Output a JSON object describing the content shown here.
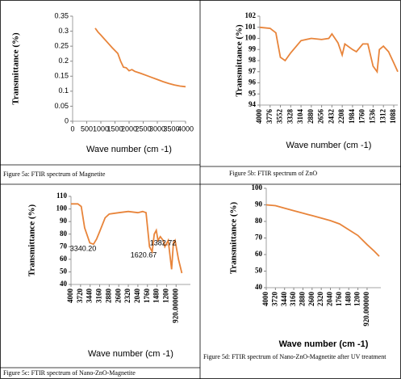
{
  "chart_data": [
    {
      "type": "line",
      "caption": "Figure 5a: FTIR spectrum of Magnetite",
      "x_label": "Wave number (cm -1)",
      "y_label": "Transmittance (%)",
      "color": "#e8843a",
      "x": [
        800,
        900,
        1000,
        1200,
        1400,
        1600,
        1700,
        1800,
        1900,
        2000,
        2100,
        2200,
        2400,
        2600,
        2800,
        3000,
        3200,
        3400,
        3600,
        3800,
        4000
      ],
      "values": [
        0.31,
        0.297,
        0.287,
        0.266,
        0.245,
        0.226,
        0.2,
        0.18,
        0.178,
        0.168,
        0.172,
        0.166,
        0.16,
        0.153,
        0.146,
        0.139,
        0.132,
        0.126,
        0.121,
        0.117,
        0.115
      ],
      "xlim": [
        0,
        4000
      ],
      "xticks": [
        0,
        500,
        1000,
        1500,
        2000,
        2500,
        3000,
        3500,
        4000
      ],
      "ylim": [
        0,
        0.35
      ],
      "yticks": [
        0,
        0.05,
        0.1,
        0.15,
        0.2,
        0.25,
        0.3,
        0.35
      ]
    },
    {
      "type": "line",
      "caption": "Figure 5b: FTIR spectrum of ZnO",
      "x_label": "Wave number (cm -1)",
      "y_label": "Transmittance (%)",
      "color": "#e8843a",
      "x": [
        4000,
        3776,
        3650,
        3552,
        3450,
        3328,
        3104,
        2880,
        2656,
        2500,
        2432,
        2300,
        2208,
        2150,
        1984,
        1900,
        1760,
        1650,
        1536,
        1450,
        1400,
        1312,
        1200,
        1088,
        1000
      ],
      "values": [
        101,
        100.9,
        100.5,
        98.3,
        98,
        98.7,
        99.8,
        100,
        99.9,
        100,
        100.4,
        99.6,
        98.5,
        99.5,
        99,
        98.8,
        99.5,
        99.5,
        97.5,
        97,
        99,
        99.3,
        98.8,
        97.8,
        97
      ],
      "xlim": [
        4000,
        1000
      ],
      "xticks": [
        4000,
        3776,
        3552,
        3328,
        3104,
        2880,
        2656,
        2432,
        2208,
        1984,
        1760,
        1536,
        1312,
        1088
      ],
      "ylim": [
        94,
        102
      ],
      "yticks": [
        94,
        95,
        96,
        97,
        98,
        99,
        100,
        101,
        102
      ]
    },
    {
      "type": "line",
      "caption": "Figure 5c: FTIR spectrum of Nano-ZnO-Magnetite",
      "x_label": "Wave number (cm -1)",
      "y_label": "Transmittance (%)",
      "color": "#e8843a",
      "annotations": [
        "3340.20",
        "1620.67",
        "1382.72"
      ],
      "x": [
        4000,
        3800,
        3700,
        3600,
        3450,
        3340,
        3250,
        3160,
        3000,
        2880,
        2600,
        2320,
        2040,
        1900,
        1800,
        1700,
        1620,
        1560,
        1500,
        1450,
        1382,
        1300,
        1250,
        1150,
        1050,
        1000,
        950,
        850,
        750
      ],
      "values": [
        104,
        104,
        102,
        85,
        73,
        72,
        76,
        82,
        93,
        96,
        97,
        98,
        97,
        98,
        97,
        70,
        66,
        80,
        83,
        75,
        78,
        75,
        70,
        75,
        52,
        73,
        75,
        60,
        49
      ],
      "xlim": [
        4000,
        500
      ],
      "xticks": [
        4000,
        3720,
        3440,
        3160,
        2880,
        2600,
        2320,
        2040,
        1760,
        1480,
        1200,
        {
          "value": 920,
          "label": "920.000000"
        }
      ],
      "ylim": [
        40,
        110
      ],
      "yticks": [
        40,
        50,
        60,
        70,
        80,
        90,
        100,
        110
      ]
    },
    {
      "type": "line",
      "caption": "Figure 5d: FTIR spectrum of Nano-ZnO-Magnetite after UV treatment",
      "x_label": "Wave number (cm -1)",
      "y_label": "Transmittance (%)",
      "color": "#e8843a",
      "x": [
        4000,
        3720,
        3440,
        3160,
        2880,
        2600,
        2320,
        2040,
        1760,
        1480,
        1200,
        920,
        700,
        550
      ],
      "values": [
        90,
        89.5,
        88,
        86.5,
        85,
        83.5,
        82,
        80.5,
        78.5,
        75,
        71.5,
        66,
        62,
        59
      ],
      "xlim": [
        4000,
        500
      ],
      "xticks": [
        4000,
        3720,
        3440,
        3160,
        2880,
        2600,
        2320,
        2040,
        1760,
        1480,
        1200,
        {
          "value": 920,
          "label": "920.000000"
        }
      ],
      "ylim": [
        40,
        100
      ],
      "yticks": [
        40,
        50,
        60,
        70,
        80,
        90,
        100
      ]
    }
  ]
}
